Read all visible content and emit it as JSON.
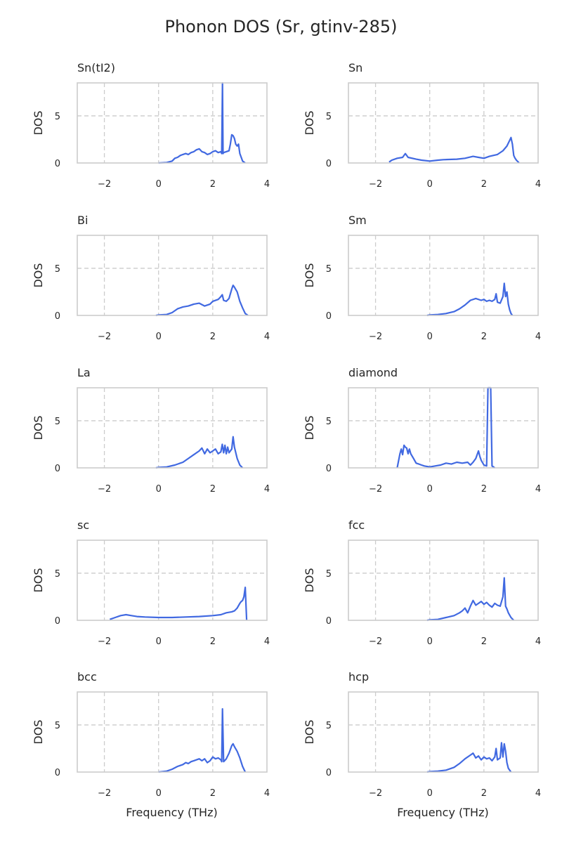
{
  "figure_title": "Phonon DOS (Sr, gtinv-285)",
  "chart_data": [
    {
      "type": "line",
      "title": "Sn(tI2)",
      "ylabel": "DOS",
      "xlabel": "",
      "xlim": [
        -3,
        4
      ],
      "ylim": [
        0,
        8.5
      ],
      "xticks": [
        -2,
        0,
        2,
        4
      ],
      "yticks": [
        0,
        5
      ],
      "grid": true,
      "series": [
        {
          "x": [
            0,
            0.3,
            0.5,
            0.6,
            0.7,
            0.8,
            0.9,
            1.0,
            1.1,
            1.2,
            1.3,
            1.4,
            1.5,
            1.6,
            1.7,
            1.8,
            1.9,
            2.0,
            2.1,
            2.2,
            2.3,
            2.33,
            2.36,
            2.38,
            2.4,
            2.5,
            2.6,
            2.65,
            2.7,
            2.75,
            2.8,
            2.85,
            2.9,
            2.95,
            3.0,
            3.05,
            3.1,
            3.2
          ],
          "y": [
            0,
            0.05,
            0.2,
            0.5,
            0.6,
            0.8,
            0.9,
            1.0,
            0.9,
            1.1,
            1.2,
            1.4,
            1.5,
            1.2,
            1.1,
            0.9,
            1.0,
            1.2,
            1.3,
            1.1,
            1.2,
            1.0,
            8.5,
            1.0,
            1.1,
            1.2,
            1.3,
            2.0,
            3.0,
            2.9,
            2.6,
            2.0,
            1.8,
            2.0,
            1.0,
            0.6,
            0.2,
            0
          ]
        }
      ]
    },
    {
      "type": "line",
      "title": "Sn",
      "ylabel": "DOS",
      "xlabel": "",
      "xlim": [
        -3,
        4
      ],
      "ylim": [
        0,
        8.5
      ],
      "xticks": [
        -2,
        0,
        2,
        4
      ],
      "yticks": [
        0,
        5
      ],
      "grid": true,
      "series": [
        {
          "x": [
            -1.5,
            -1.4,
            -1.2,
            -1.0,
            -0.9,
            -0.8,
            -0.5,
            -0.3,
            0,
            0.3,
            0.5,
            1.0,
            1.3,
            1.6,
            1.8,
            2.0,
            2.2,
            2.5,
            2.7,
            2.85,
            2.95,
            3.0,
            3.05,
            3.1,
            3.15,
            3.2,
            3.3
          ],
          "y": [
            0.1,
            0.3,
            0.5,
            0.6,
            1.0,
            0.6,
            0.4,
            0.3,
            0.2,
            0.3,
            0.35,
            0.4,
            0.5,
            0.7,
            0.6,
            0.5,
            0.7,
            0.9,
            1.3,
            1.8,
            2.4,
            2.7,
            2.0,
            0.8,
            0.5,
            0.3,
            0
          ]
        }
      ]
    },
    {
      "type": "line",
      "title": "Bi",
      "ylabel": "DOS",
      "xlabel": "",
      "xlim": [
        -3,
        4
      ],
      "ylim": [
        0,
        8.5
      ],
      "xticks": [
        -2,
        0,
        2,
        4
      ],
      "yticks": [
        0,
        5
      ],
      "grid": true,
      "series": [
        {
          "x": [
            -0.1,
            0,
            0.3,
            0.5,
            0.7,
            0.9,
            1.1,
            1.3,
            1.5,
            1.7,
            1.9,
            2.0,
            2.2,
            2.3,
            2.35,
            2.4,
            2.5,
            2.6,
            2.7,
            2.75,
            2.8,
            2.9,
            3.0,
            3.1,
            3.2,
            3.3
          ],
          "y": [
            0,
            0.05,
            0.1,
            0.3,
            0.7,
            0.9,
            1.0,
            1.2,
            1.3,
            1.0,
            1.2,
            1.5,
            1.7,
            2.0,
            2.2,
            1.6,
            1.5,
            1.8,
            2.8,
            3.2,
            3.0,
            2.5,
            1.5,
            0.8,
            0.2,
            0
          ]
        }
      ]
    },
    {
      "type": "line",
      "title": "Sm",
      "ylabel": "DOS",
      "xlabel": "",
      "xlim": [
        -3,
        4
      ],
      "ylim": [
        0,
        8.5
      ],
      "xticks": [
        -2,
        0,
        2,
        4
      ],
      "yticks": [
        0,
        5
      ],
      "grid": true,
      "series": [
        {
          "x": [
            -0.1,
            0,
            0.3,
            0.6,
            0.9,
            1.1,
            1.3,
            1.5,
            1.7,
            1.9,
            2.0,
            2.1,
            2.2,
            2.3,
            2.4,
            2.45,
            2.5,
            2.6,
            2.7,
            2.75,
            2.8,
            2.85,
            2.9,
            2.95,
            3.0,
            3.05
          ],
          "y": [
            0,
            0.05,
            0.1,
            0.2,
            0.4,
            0.7,
            1.1,
            1.6,
            1.8,
            1.6,
            1.7,
            1.5,
            1.6,
            1.5,
            1.7,
            2.3,
            1.4,
            1.3,
            2.0,
            3.4,
            2.0,
            2.5,
            1.2,
            0.6,
            0.2,
            0
          ]
        }
      ]
    },
    {
      "type": "line",
      "title": "La",
      "ylabel": "DOS",
      "xlabel": "",
      "xlim": [
        -3,
        4
      ],
      "ylim": [
        0,
        8.5
      ],
      "xticks": [
        -2,
        0,
        2,
        4
      ],
      "yticks": [
        0,
        5
      ],
      "grid": true,
      "series": [
        {
          "x": [
            -0.1,
            0,
            0.3,
            0.6,
            0.9,
            1.1,
            1.3,
            1.5,
            1.6,
            1.7,
            1.8,
            1.9,
            2.0,
            2.1,
            2.2,
            2.3,
            2.35,
            2.4,
            2.45,
            2.5,
            2.55,
            2.6,
            2.7,
            2.75,
            2.8,
            2.9,
            3.0,
            3.1
          ],
          "y": [
            0,
            0.05,
            0.1,
            0.3,
            0.6,
            1.0,
            1.4,
            1.8,
            2.1,
            1.5,
            2.0,
            1.6,
            1.8,
            2.0,
            1.5,
            1.7,
            2.5,
            1.6,
            2.4,
            1.5,
            2.2,
            1.6,
            2.0,
            3.3,
            2.2,
            1.0,
            0.3,
            0
          ]
        }
      ]
    },
    {
      "type": "line",
      "title": "diamond",
      "ylabel": "DOS",
      "xlabel": "",
      "xlim": [
        -3,
        4
      ],
      "ylim": [
        0,
        8.5
      ],
      "xticks": [
        -2,
        0,
        2,
        4
      ],
      "yticks": [
        0,
        5
      ],
      "grid": true,
      "series": [
        {
          "x": [
            -1.2,
            -1.1,
            -1.05,
            -1.0,
            -0.95,
            -0.9,
            -0.85,
            -0.8,
            -0.75,
            -0.7,
            -0.6,
            -0.5,
            -0.4,
            -0.3,
            -0.2,
            0,
            0.2,
            0.4,
            0.6,
            0.8,
            1.0,
            1.2,
            1.4,
            1.5,
            1.6,
            1.7,
            1.8,
            1.85,
            1.9,
            2.0,
            2.1,
            2.15,
            2.2,
            2.25,
            2.3,
            2.35,
            2.4
          ],
          "y": [
            0,
            1.5,
            2.0,
            1.4,
            2.4,
            2.2,
            2.1,
            1.5,
            2.0,
            1.5,
            1.0,
            0.5,
            0.4,
            0.3,
            0.2,
            0.1,
            0.2,
            0.3,
            0.5,
            0.4,
            0.6,
            0.5,
            0.6,
            0.3,
            0.6,
            1.0,
            1.8,
            1.2,
            0.8,
            0.3,
            0.2,
            8.5,
            8.5,
            8.5,
            0.2,
            0.1,
            0
          ]
        }
      ]
    },
    {
      "type": "line",
      "title": "sc",
      "ylabel": "DOS",
      "xlabel": "",
      "xlim": [
        -3,
        4
      ],
      "ylim": [
        0,
        8.5
      ],
      "xticks": [
        -2,
        0,
        2,
        4
      ],
      "yticks": [
        0,
        5
      ],
      "grid": true,
      "series": [
        {
          "x": [
            -1.8,
            -1.6,
            -1.4,
            -1.2,
            -1.0,
            -0.8,
            -0.5,
            0,
            0.5,
            1.0,
            1.5,
            2.0,
            2.3,
            2.5,
            2.7,
            2.8,
            2.9,
            3.0,
            3.05,
            3.1,
            3.15,
            3.2,
            3.25
          ],
          "y": [
            0.1,
            0.3,
            0.5,
            0.6,
            0.5,
            0.4,
            0.35,
            0.3,
            0.3,
            0.35,
            0.4,
            0.5,
            0.6,
            0.8,
            0.9,
            1.0,
            1.3,
            1.8,
            2.0,
            2.1,
            2.5,
            3.5,
            0
          ]
        }
      ]
    },
    {
      "type": "line",
      "title": "fcc",
      "ylabel": "DOS",
      "xlabel": "",
      "xlim": [
        -3,
        4
      ],
      "ylim": [
        0,
        8.5
      ],
      "xticks": [
        -2,
        0,
        2,
        4
      ],
      "yticks": [
        0,
        5
      ],
      "grid": true,
      "series": [
        {
          "x": [
            -0.1,
            0,
            0.3,
            0.6,
            0.9,
            1.1,
            1.2,
            1.3,
            1.4,
            1.5,
            1.6,
            1.7,
            1.8,
            1.9,
            2.0,
            2.1,
            2.2,
            2.3,
            2.4,
            2.5,
            2.6,
            2.7,
            2.75,
            2.8,
            2.85,
            2.9,
            3.0,
            3.1
          ],
          "y": [
            0,
            0.05,
            0.1,
            0.3,
            0.5,
            0.8,
            1.0,
            1.3,
            0.8,
            1.5,
            2.1,
            1.6,
            1.8,
            2.0,
            1.7,
            1.9,
            1.6,
            1.4,
            1.8,
            1.6,
            1.5,
            2.5,
            4.5,
            1.5,
            1.2,
            0.8,
            0.3,
            0
          ]
        }
      ]
    },
    {
      "type": "line",
      "title": "bcc",
      "ylabel": "DOS",
      "xlabel": "",
      "xlim": [
        -3,
        4
      ],
      "ylim": [
        0,
        8.5
      ],
      "xticks": [
        -2,
        0,
        2,
        4
      ],
      "yticks": [
        0,
        5
      ],
      "grid": true,
      "series": [
        {
          "x": [
            0,
            0.3,
            0.5,
            0.7,
            0.9,
            1.0,
            1.1,
            1.2,
            1.3,
            1.4,
            1.5,
            1.6,
            1.7,
            1.8,
            1.9,
            2.0,
            2.1,
            2.2,
            2.3,
            2.33,
            2.36,
            2.4,
            2.5,
            2.6,
            2.7,
            2.75,
            2.8,
            2.9,
            3.0,
            3.1,
            3.2
          ],
          "y": [
            0,
            0.1,
            0.3,
            0.6,
            0.8,
            1.0,
            0.9,
            1.1,
            1.2,
            1.3,
            1.4,
            1.2,
            1.4,
            1.0,
            1.2,
            1.6,
            1.4,
            1.5,
            1.3,
            1.1,
            6.7,
            1.1,
            1.4,
            2.0,
            2.8,
            3.0,
            2.7,
            2.2,
            1.5,
            0.6,
            0
          ]
        }
      ]
    },
    {
      "type": "line",
      "title": "hcp",
      "ylabel": "DOS",
      "xlabel": "",
      "xlim": [
        -3,
        4
      ],
      "ylim": [
        0,
        8.5
      ],
      "xticks": [
        -2,
        0,
        2,
        4
      ],
      "yticks": [
        0,
        5
      ],
      "grid": true,
      "series": [
        {
          "x": [
            -0.1,
            0,
            0.3,
            0.6,
            0.9,
            1.1,
            1.3,
            1.5,
            1.6,
            1.7,
            1.8,
            1.9,
            2.0,
            2.1,
            2.2,
            2.3,
            2.4,
            2.45,
            2.5,
            2.6,
            2.65,
            2.7,
            2.75,
            2.8,
            2.85,
            2.9,
            3.0
          ],
          "y": [
            0,
            0.05,
            0.1,
            0.2,
            0.5,
            0.9,
            1.4,
            1.8,
            2.0,
            1.5,
            1.7,
            1.3,
            1.6,
            1.4,
            1.5,
            1.2,
            1.6,
            2.5,
            1.3,
            1.5,
            3.1,
            1.6,
            3.0,
            2.2,
            1.0,
            0.4,
            0
          ]
        }
      ]
    }
  ],
  "xlabel_bottom": "Frequency (THz)",
  "colors": {
    "line": "#4169e1",
    "grid": "#cccccc",
    "frame": "#cccccc",
    "text": "#262626"
  }
}
